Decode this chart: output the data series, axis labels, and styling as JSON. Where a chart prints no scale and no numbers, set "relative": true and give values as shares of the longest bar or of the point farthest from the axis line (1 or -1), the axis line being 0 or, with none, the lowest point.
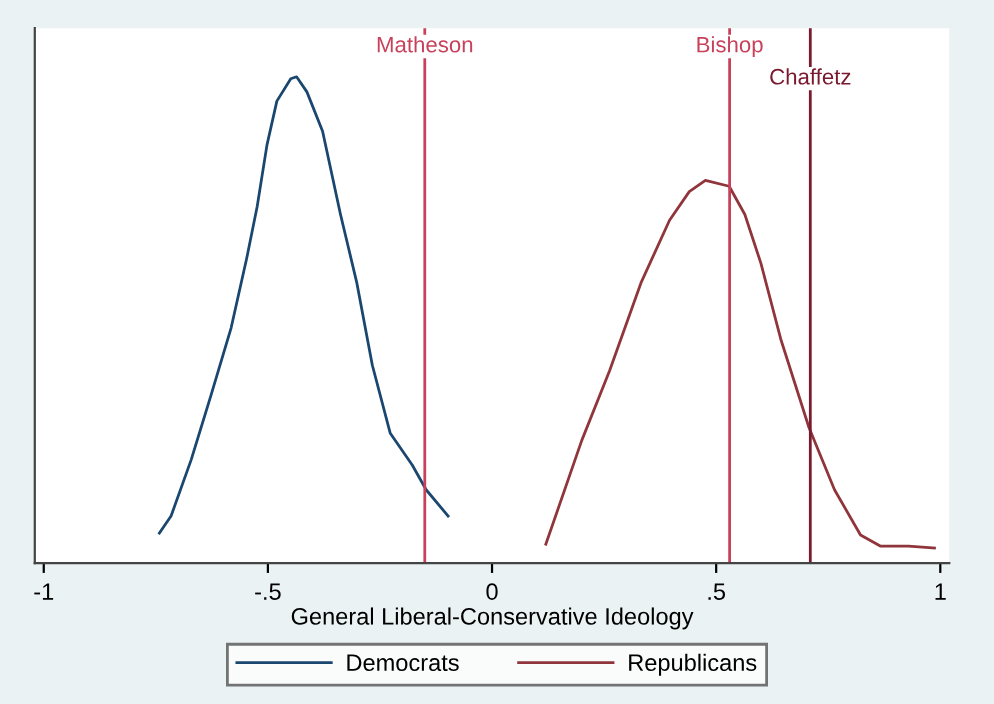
{
  "chart_data": {
    "type": "line",
    "relative": true,
    "xlabel": "General Liberal-Conservative Ideology",
    "xlim": [
      -1.02,
      1.02
    ],
    "xticks": [
      -1,
      {
        "value": -0.5,
        "label": "-.5"
      },
      0,
      {
        "value": 0.5,
        "label": ".5"
      },
      1
    ],
    "series": [
      {
        "name": "Democrats",
        "color": "#1a476f",
        "x": [
          -0.742,
          -0.716,
          -0.671,
          -0.627,
          -0.582,
          -0.547,
          -0.524,
          -0.502,
          -0.48,
          -0.449,
          -0.436,
          -0.413,
          -0.378,
          -0.338,
          -0.302,
          -0.267,
          -0.227,
          -0.178,
          -0.147,
          -0.098
        ],
        "values": [
          0.062,
          0.097,
          0.213,
          0.345,
          0.484,
          0.628,
          0.733,
          0.86,
          0.95,
          0.996,
          1,
          0.969,
          0.888,
          0.717,
          0.578,
          0.407,
          0.267,
          0.202,
          0.151,
          0.097
        ]
      },
      {
        "name": "Republicans",
        "color": "#90353b",
        "x": [
          0.12,
          0.2,
          0.262,
          0.333,
          0.396,
          0.44,
          0.476,
          0.529,
          0.564,
          0.6,
          0.644,
          0.707,
          0.764,
          0.822,
          0.867,
          0.929,
          0.987
        ],
        "values": [
          0.039,
          0.252,
          0.395,
          0.578,
          0.705,
          0.764,
          0.787,
          0.775,
          0.717,
          0.616,
          0.461,
          0.279,
          0.151,
          0.058,
          0.035,
          0.035,
          0.031
        ]
      }
    ],
    "ref_lines": [
      {
        "axis": "x",
        "value": -0.15,
        "label": "Matheson",
        "color": "#c8405a"
      },
      {
        "axis": "x",
        "value": 0.53,
        "label": "Bishop",
        "color": "#c8405a"
      },
      {
        "axis": "x",
        "value": 0.71,
        "label": "Chaffetz",
        "color": "#7a1a2e"
      }
    ],
    "grid": false,
    "legend": "bottom",
    "line_style": "solid",
    "marker": "none"
  }
}
